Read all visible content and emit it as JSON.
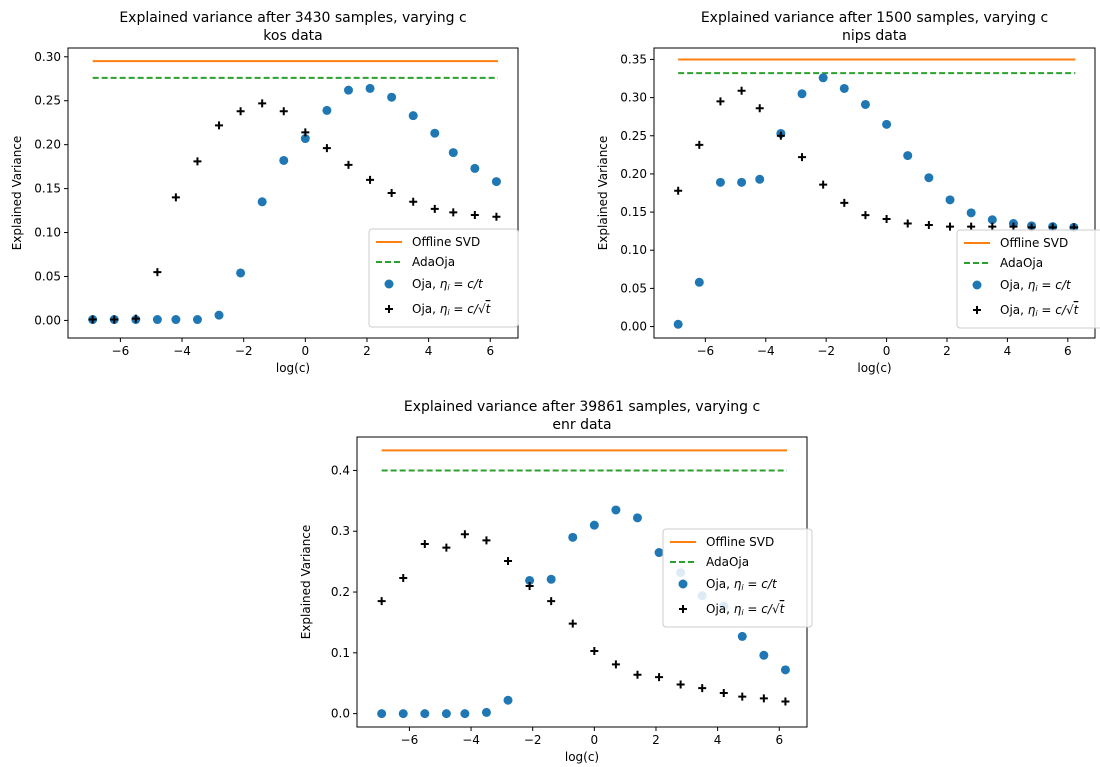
{
  "chart_data": [
    {
      "type": "scatter",
      "title": "Explained variance after 3430 samples, varying c",
      "subtitle": "kos data",
      "xlabel": "log(c)",
      "ylabel": "Explained Variance",
      "xlim": [
        -7.7,
        6.9
      ],
      "ylim": [
        -0.02,
        0.31
      ],
      "xticks": [
        -6,
        -4,
        -2,
        0,
        2,
        4,
        6
      ],
      "yticks": [
        0.0,
        0.05,
        0.1,
        0.15,
        0.2,
        0.25,
        0.3
      ],
      "legend_position": "lower-right",
      "lines": [
        {
          "name": "Offline SVD",
          "y": 0.295,
          "color": "#ff7f0e",
          "style": "solid"
        },
        {
          "name": "AdaOja",
          "y": 0.276,
          "color": "#2ca02c",
          "style": "dashed"
        }
      ],
      "series": [
        {
          "name": "Oja, η_i = c/t",
          "marker": "circle",
          "color": "#1f77b4",
          "x": [
            -6.9,
            -6.2,
            -5.5,
            -4.8,
            -4.2,
            -3.5,
            -2.8,
            -2.1,
            -1.4,
            -0.7,
            0.0,
            0.7,
            1.4,
            2.1,
            2.8,
            3.5,
            4.2,
            4.8,
            5.5,
            6.2
          ],
          "values": [
            0.001,
            0.001,
            0.001,
            0.001,
            0.001,
            0.001,
            0.006,
            0.054,
            0.135,
            0.182,
            0.207,
            0.239,
            0.262,
            0.264,
            0.254,
            0.233,
            0.213,
            0.191,
            0.173,
            0.158
          ]
        },
        {
          "name": "Oja, η_i = c/√t",
          "marker": "plus",
          "color": "#000000",
          "x": [
            -6.9,
            -6.2,
            -5.5,
            -4.8,
            -4.2,
            -3.5,
            -2.8,
            -2.1,
            -1.4,
            -0.7,
            0.0,
            0.7,
            1.4,
            2.1,
            2.8,
            3.5,
            4.2,
            4.8,
            5.5,
            6.2
          ],
          "values": [
            0.001,
            0.001,
            0.002,
            0.055,
            0.14,
            0.181,
            0.222,
            0.238,
            0.247,
            0.238,
            0.214,
            0.196,
            0.177,
            0.16,
            0.145,
            0.135,
            0.127,
            0.123,
            0.12,
            0.118
          ]
        }
      ]
    },
    {
      "type": "scatter",
      "title": "Explained variance after 1500 samples, varying c",
      "subtitle": "nips data",
      "xlabel": "log(c)",
      "ylabel": "Explained Variance",
      "xlim": [
        -7.7,
        6.9
      ],
      "ylim": [
        -0.015,
        0.365
      ],
      "xticks": [
        -6,
        -4,
        -2,
        0,
        2,
        4,
        6
      ],
      "yticks": [
        0.0,
        0.05,
        0.1,
        0.15,
        0.2,
        0.25,
        0.3,
        0.35
      ],
      "legend_position": "lower-right",
      "lines": [
        {
          "name": "Offline SVD",
          "y": 0.35,
          "color": "#ff7f0e",
          "style": "solid"
        },
        {
          "name": "AdaOja",
          "y": 0.332,
          "color": "#2ca02c",
          "style": "dashed"
        }
      ],
      "series": [
        {
          "name": "Oja, η_i = c/t",
          "marker": "circle",
          "color": "#1f77b4",
          "x": [
            -6.9,
            -6.2,
            -5.5,
            -4.8,
            -4.2,
            -3.5,
            -2.8,
            -2.1,
            -1.4,
            -0.7,
            0.0,
            0.7,
            1.4,
            2.1,
            2.8,
            3.5,
            4.2,
            4.8,
            5.5,
            6.2
          ],
          "values": [
            0.003,
            0.058,
            0.189,
            0.189,
            0.193,
            0.253,
            0.305,
            0.326,
            0.312,
            0.291,
            0.265,
            0.224,
            0.195,
            0.166,
            0.149,
            0.14,
            0.135,
            0.132,
            0.131,
            0.13
          ]
        },
        {
          "name": "Oja, η_i = c/√t",
          "marker": "plus",
          "color": "#000000",
          "x": [
            -6.9,
            -6.2,
            -5.5,
            -4.8,
            -4.2,
            -3.5,
            -2.8,
            -2.1,
            -1.4,
            -0.7,
            0.0,
            0.7,
            1.4,
            2.1,
            2.8,
            3.5,
            4.2,
            4.8,
            5.5,
            6.2
          ],
          "values": [
            0.178,
            0.238,
            0.295,
            0.309,
            0.286,
            0.25,
            0.222,
            0.186,
            0.162,
            0.146,
            0.141,
            0.135,
            0.133,
            0.131,
            0.131,
            0.131,
            0.131,
            0.13,
            0.13,
            0.13
          ]
        }
      ]
    },
    {
      "type": "scatter",
      "title": "Explained variance after 39861 samples, varying c",
      "subtitle": "enr data",
      "xlabel": "log(c)",
      "ylabel": "Explained Variance",
      "xlim": [
        -7.7,
        6.9
      ],
      "ylim": [
        -0.022,
        0.455
      ],
      "xticks": [
        -6,
        -4,
        -2,
        0,
        2,
        4,
        6
      ],
      "yticks": [
        0.0,
        0.1,
        0.2,
        0.3,
        0.4
      ],
      "legend_position": "center-right",
      "lines": [
        {
          "name": "Offline SVD",
          "y": 0.433,
          "color": "#ff7f0e",
          "style": "solid"
        },
        {
          "name": "AdaOja",
          "y": 0.4,
          "color": "#2ca02c",
          "style": "dashed"
        }
      ],
      "series": [
        {
          "name": "Oja, η_i = c/t",
          "marker": "circle",
          "color": "#1f77b4",
          "x": [
            -6.9,
            -6.2,
            -5.5,
            -4.8,
            -4.2,
            -3.5,
            -2.8,
            -2.1,
            -1.4,
            -0.7,
            0.0,
            0.7,
            1.4,
            2.1,
            2.8,
            3.5,
            4.2,
            4.8,
            5.5,
            6.2
          ],
          "values": [
            0.0,
            0.0,
            0.0,
            0.0,
            0.0,
            0.002,
            0.022,
            0.219,
            0.221,
            0.29,
            0.31,
            0.335,
            0.322,
            0.265,
            0.232,
            0.194,
            0.177,
            0.127,
            0.096,
            0.072
          ]
        },
        {
          "name": "Oja, η_i = c/√t",
          "marker": "plus",
          "color": "#000000",
          "x": [
            -6.9,
            -6.2,
            -5.5,
            -4.8,
            -4.2,
            -3.5,
            -2.8,
            -2.1,
            -1.4,
            -0.7,
            0.0,
            0.7,
            1.4,
            2.1,
            2.8,
            3.5,
            4.2,
            4.8,
            5.5,
            6.2
          ],
          "values": [
            0.185,
            0.223,
            0.279,
            0.273,
            0.295,
            0.285,
            0.251,
            0.21,
            0.185,
            0.148,
            0.103,
            0.081,
            0.064,
            0.06,
            0.048,
            0.042,
            0.034,
            0.028,
            0.025,
            0.02
          ]
        }
      ]
    }
  ]
}
